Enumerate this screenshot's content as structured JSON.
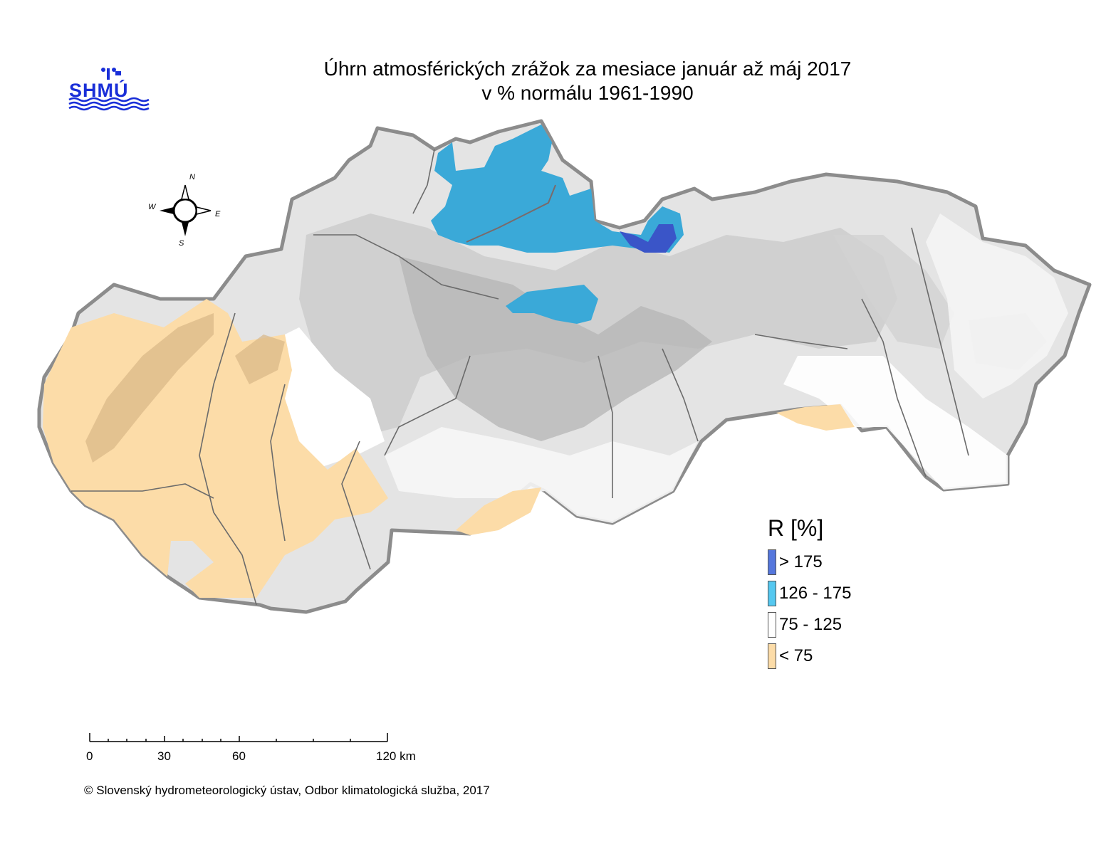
{
  "title": {
    "line1": "Úhrn atmosférických zrážok za mesiace január až máj 2017",
    "line2": "v % normálu 1961-1990"
  },
  "logo": {
    "text": "SHMÚ",
    "icon": "shmu-logo-icon"
  },
  "compass": {
    "n": "N",
    "s": "S",
    "e": "E",
    "w": "W"
  },
  "legend": {
    "title": "R [%]",
    "items": [
      {
        "label": "> 175",
        "color": "#5577dd"
      },
      {
        "label": "126 - 175",
        "color": "#55c8f0"
      },
      {
        "label": "75 - 125",
        "color": "#ffffff"
      },
      {
        "label": "< 75",
        "color": "#fcdca8"
      }
    ]
  },
  "scale_bar": {
    "labels": [
      "0",
      "30",
      "60",
      "120 km"
    ]
  },
  "copyright": "© Slovenský hydrometeorologický ústav, Odbor klimatologická služba, 2017",
  "colors": {
    "border": "#8c8c8c",
    "terrain_light": "#e6e6e6",
    "terrain_mid": "#cfcfcf",
    "terrain_dark": "#b3b3b3",
    "dry": "#fcdca8",
    "wet": "#3aa9d8",
    "very_wet": "#3a55c8"
  }
}
